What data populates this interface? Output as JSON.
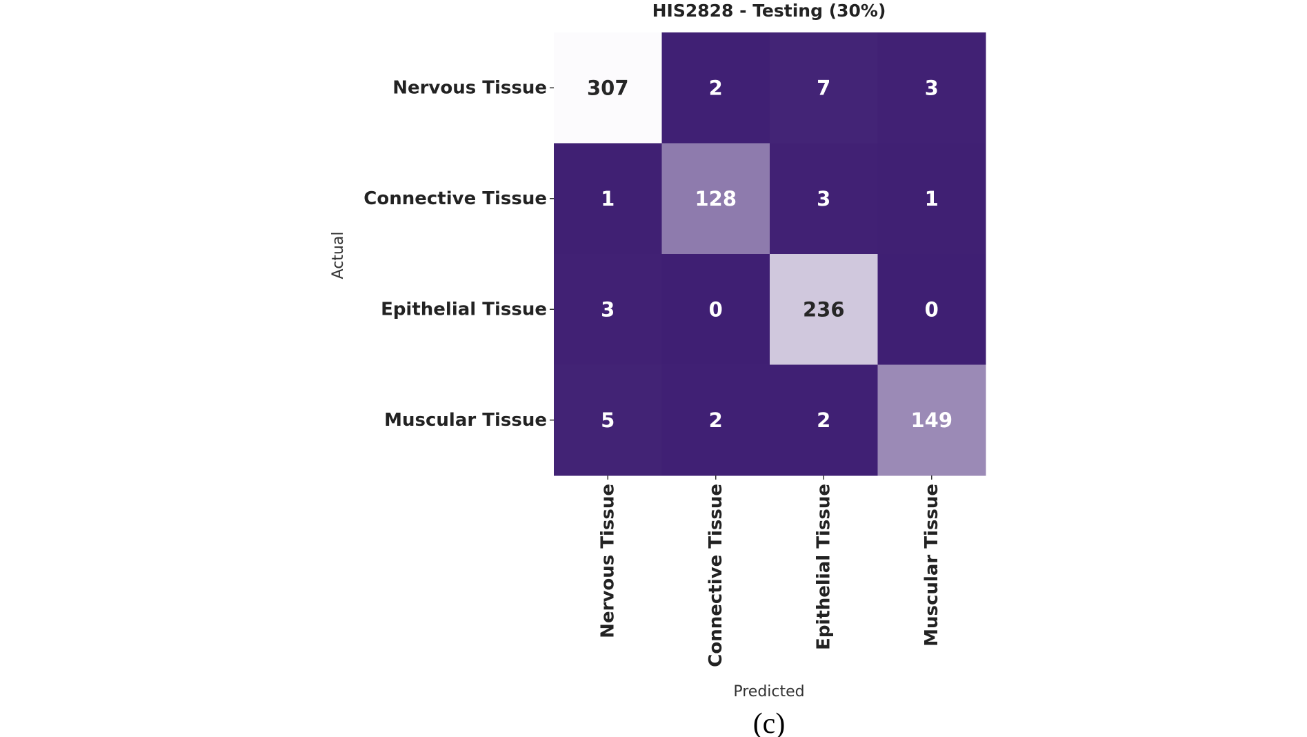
{
  "chart_data": {
    "type": "heatmap",
    "title": "HIS2828 - Testing (30%)",
    "xlabel": "Predicted",
    "ylabel": "Actual",
    "rows": [
      "Nervous Tissue",
      "Connective Tissue",
      "Epithelial Tissue",
      "Muscular Tissue"
    ],
    "columns": [
      "Nervous Tissue",
      "Connective Tissue",
      "Epithelial Tissue",
      "Muscular Tissue"
    ],
    "values": [
      [
        307,
        2,
        7,
        3
      ],
      [
        1,
        128,
        3,
        1
      ],
      [
        3,
        0,
        236,
        0
      ],
      [
        5,
        2,
        2,
        149
      ]
    ],
    "colormap": "Purples_r",
    "color_low": "#3f1f73",
    "color_high": "#fcfbfd",
    "value_range": [
      0,
      307
    ],
    "colorbar": false
  },
  "caption": "(c)"
}
